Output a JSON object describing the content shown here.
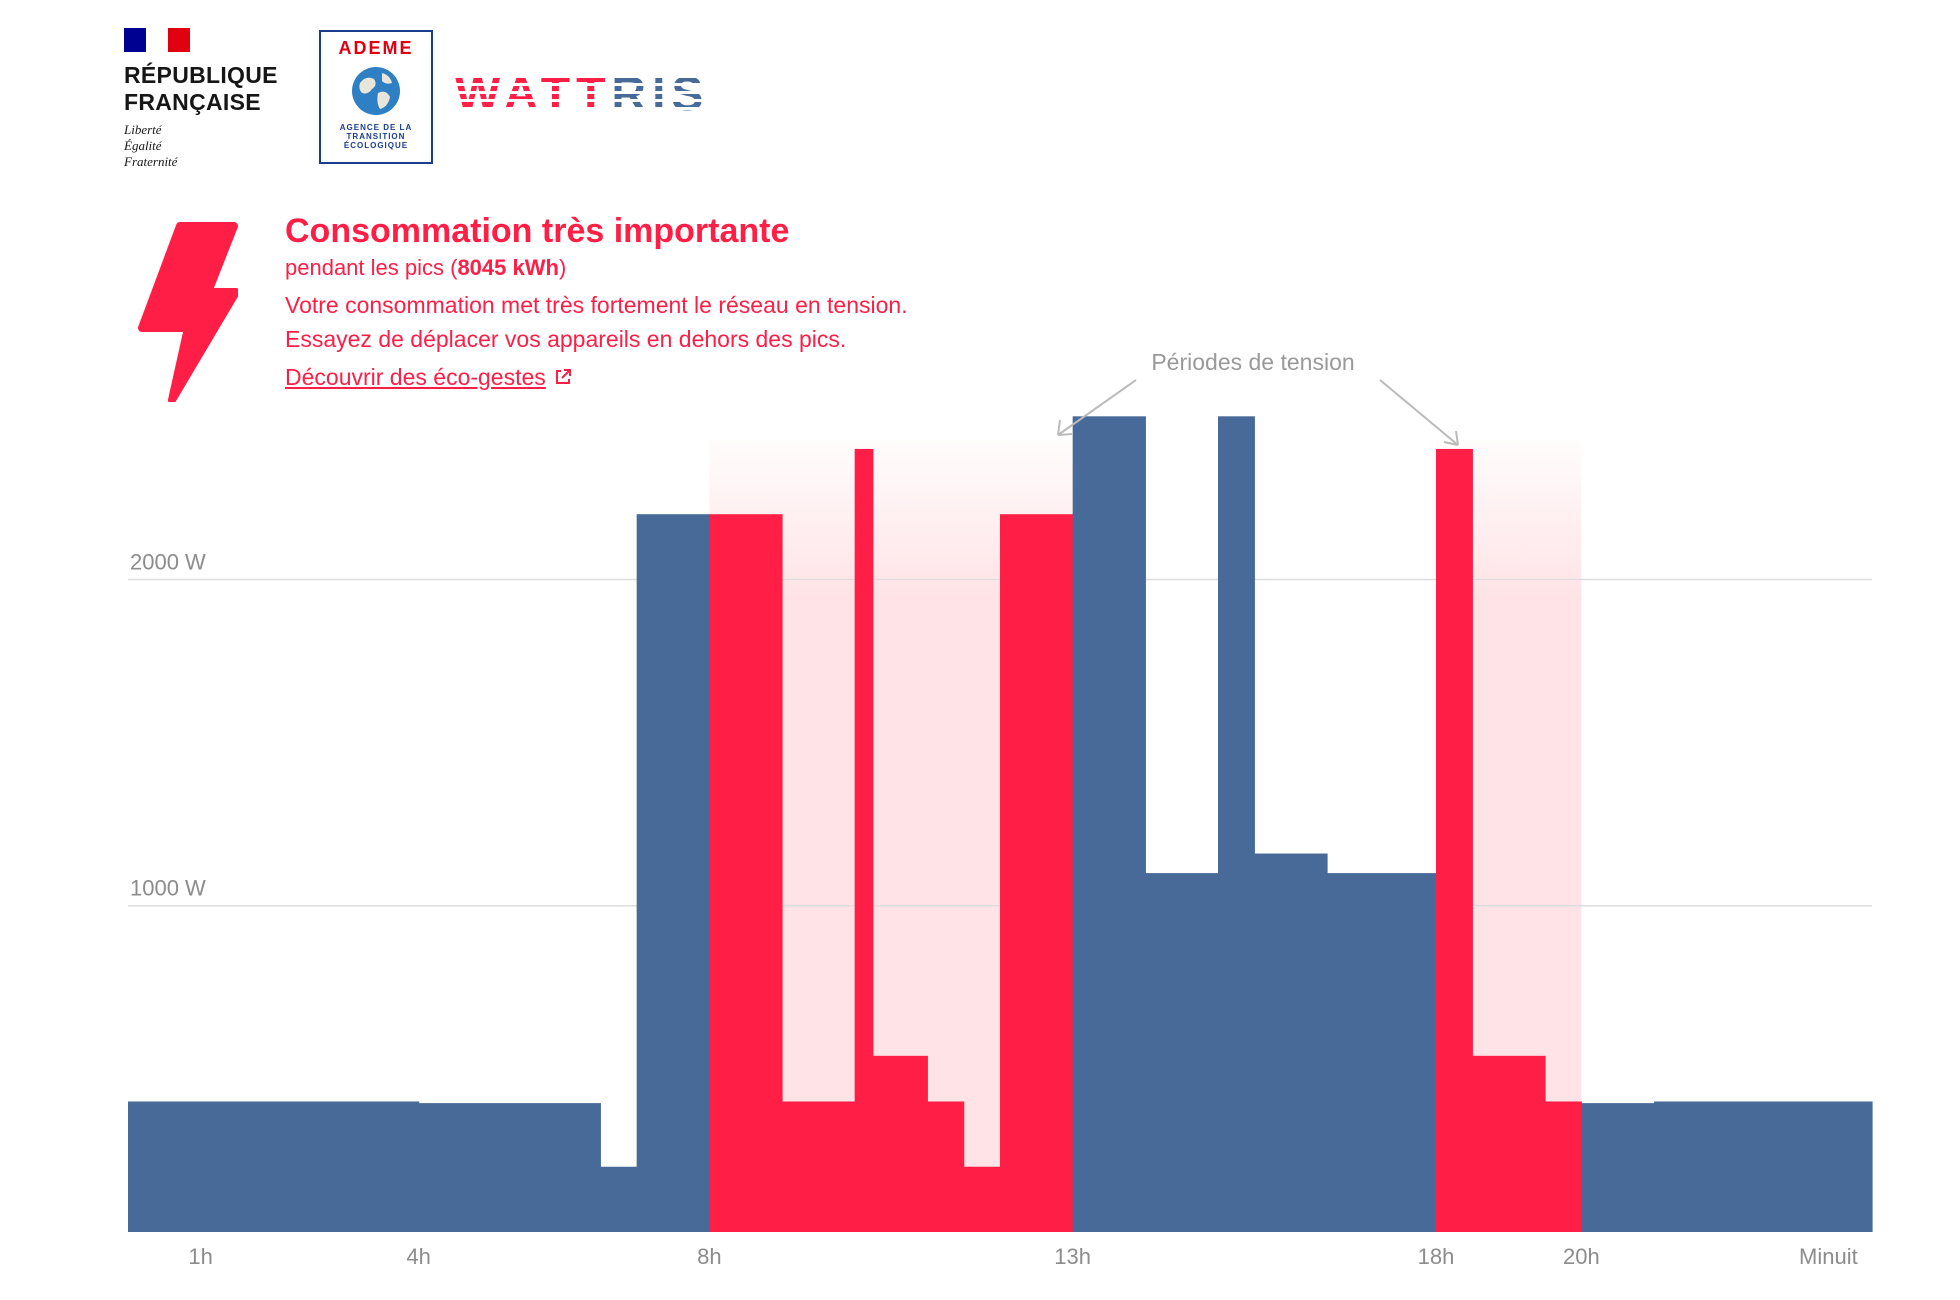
{
  "header": {
    "republique_line1": "RÉPUBLIQUE",
    "republique_line2": "FRANÇAISE",
    "motto": [
      "Liberté",
      "Égalité",
      "Fraternité"
    ],
    "ademe_name": "ADEME",
    "ademe_sub": [
      "AGENCE DE LA",
      "TRANSITION",
      "ÉCOLOGIQUE"
    ],
    "app_name": "WATTRIS",
    "flag_colors": [
      "#000091",
      "#ffffff",
      "#e1000f"
    ]
  },
  "message": {
    "icon": "lightning-bolt-icon",
    "title": "Consommation très importante",
    "sub_prefix": "pendant les pics (",
    "sub_value": "8045 kWh",
    "sub_suffix": ")",
    "line1": "Votre consommation met très fortement le réseau en tension.",
    "line2": "Essayez de déplacer vos appareils en dehors des pics.",
    "link_label": "Découvrir des éco-gestes",
    "link_icon": "external-link-icon"
  },
  "chart_data": {
    "type": "bar",
    "title": "",
    "xlabel": "",
    "ylabel": "",
    "ylim": [
      0,
      2550
    ],
    "xlim": [
      0,
      24
    ],
    "grid": true,
    "y_ticks": [
      {
        "value": 1000,
        "label": "1000 W"
      },
      {
        "value": 2000,
        "label": "2000 W"
      }
    ],
    "x_ticks": [
      {
        "value": 1,
        "label": "1h"
      },
      {
        "value": 4,
        "label": "4h"
      },
      {
        "value": 8,
        "label": "8h"
      },
      {
        "value": 13,
        "label": "13h"
      },
      {
        "value": 18,
        "label": "18h"
      },
      {
        "value": 20,
        "label": "20h"
      },
      {
        "value": 23.4,
        "label": "Minuit"
      }
    ],
    "tension_periods": [
      [
        8,
        13
      ],
      [
        18,
        20
      ]
    ],
    "annotation": "Périodes de tension",
    "colors": {
      "normal": "#476a99",
      "peak": "#ff1e46",
      "tension_band": "#ffe3e6",
      "grid": "#dddddd",
      "annotation": "#bbbbbb"
    },
    "bars": [
      {
        "start": 0,
        "end": 4,
        "value": 400,
        "peak": false
      },
      {
        "start": 4,
        "end": 6.5,
        "value": 395,
        "peak": false
      },
      {
        "start": 6.5,
        "end": 7,
        "value": 200,
        "peak": false
      },
      {
        "start": 7,
        "end": 8,
        "value": 2200,
        "peak": false
      },
      {
        "start": 8,
        "end": 9,
        "value": 2200,
        "peak": true
      },
      {
        "start": 9,
        "end": 10,
        "value": 400,
        "peak": true
      },
      {
        "start": 10,
        "end": 10.25,
        "value": 2400,
        "peak": true
      },
      {
        "start": 10.25,
        "end": 11,
        "value": 540,
        "peak": true
      },
      {
        "start": 11,
        "end": 11.5,
        "value": 400,
        "peak": true
      },
      {
        "start": 11.5,
        "end": 12,
        "value": 200,
        "peak": true
      },
      {
        "start": 12,
        "end": 13,
        "value": 2200,
        "peak": true
      },
      {
        "start": 13,
        "end": 14,
        "value": 2500,
        "peak": false
      },
      {
        "start": 14,
        "end": 15,
        "value": 1100,
        "peak": false
      },
      {
        "start": 15,
        "end": 15.5,
        "value": 2500,
        "peak": false
      },
      {
        "start": 15.5,
        "end": 16.5,
        "value": 1160,
        "peak": false
      },
      {
        "start": 16.5,
        "end": 18,
        "value": 1100,
        "peak": false
      },
      {
        "start": 18,
        "end": 18.5,
        "value": 2400,
        "peak": true
      },
      {
        "start": 18.5,
        "end": 19.5,
        "value": 540,
        "peak": true
      },
      {
        "start": 19.5,
        "end": 20,
        "value": 400,
        "peak": true
      },
      {
        "start": 20,
        "end": 21,
        "value": 395,
        "peak": false
      },
      {
        "start": 21,
        "end": 24,
        "value": 400,
        "peak": false
      }
    ]
  }
}
